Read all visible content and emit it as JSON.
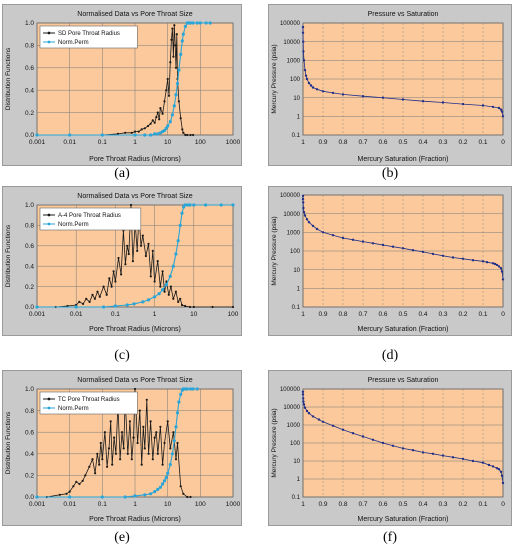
{
  "captions": [
    "(a)",
    "(b)",
    "(c)",
    "(d)",
    "(e)",
    "(f)"
  ],
  "colors": {
    "plot_bg": "#fbc99b",
    "panel_bg": "#c9c9c9",
    "grid": "#7a7a7a",
    "pore_series": "#1a1a1a",
    "perm_series": "#2aa5d8",
    "pressure_series": "#1f2f8a"
  },
  "chart_data": [
    {
      "type": "line",
      "title": "Normalised Data vs Pore Throat Size",
      "xlabel": "Pore Throat Radius (Microns)",
      "ylabel": "Distribution Functions",
      "x_scale": "log",
      "xlim": [
        0.001,
        1000
      ],
      "ylim": [
        0,
        1
      ],
      "xticks": [
        "0.001",
        "0.01",
        "0.1",
        "1",
        "10",
        "100",
        "1000"
      ],
      "yticks": [
        "0.0",
        "0.2",
        "0.4",
        "0.6",
        "0.8",
        "1.0"
      ],
      "grid": true,
      "legend": "top-left",
      "series": [
        {
          "name": "SD Pore Throat Radius",
          "x": [
            0.001,
            0.01,
            0.1,
            0.3,
            0.5,
            0.8,
            1,
            1.3,
            1.6,
            2,
            2.5,
            3,
            3.5,
            4,
            4.5,
            5,
            5.5,
            6,
            7,
            8,
            9,
            10,
            11,
            12,
            13,
            14,
            15,
            16,
            17,
            18,
            19,
            20,
            22,
            25,
            28,
            30,
            35,
            40,
            50,
            60
          ],
          "y": [
            0,
            0,
            0,
            0.01,
            0.02,
            0.02,
            0.03,
            0.03,
            0.05,
            0.06,
            0.08,
            0.1,
            0.13,
            0.11,
            0.16,
            0.2,
            0.14,
            0.24,
            0.19,
            0.3,
            0.4,
            0.5,
            0.35,
            0.65,
            0.85,
            0.95,
            0.7,
            0.98,
            0.8,
            0.6,
            0.9,
            0.5,
            0.3,
            0.15,
            0.05,
            0.02,
            0,
            0,
            0,
            0
          ]
        },
        {
          "name": "Norm.Perm",
          "x": [
            0.001,
            0.01,
            0.1,
            1,
            2,
            3,
            4,
            5,
            6,
            7,
            8,
            9,
            10,
            12,
            14,
            16,
            18,
            20,
            22,
            25,
            28,
            30,
            35,
            40,
            45,
            50,
            60,
            80,
            100,
            150,
            200
          ],
          "y": [
            0,
            0,
            0,
            0,
            0,
            0,
            0.01,
            0.01,
            0.02,
            0.03,
            0.04,
            0.06,
            0.08,
            0.12,
            0.18,
            0.26,
            0.36,
            0.46,
            0.58,
            0.72,
            0.84,
            0.9,
            0.97,
            1,
            1,
            1,
            1,
            1,
            1,
            1,
            1
          ]
        }
      ]
    },
    {
      "type": "line",
      "title": "Pressure vs Saturation",
      "xlabel": "Mercury Saturation (Fraction)",
      "ylabel": "Mercury Pressure (psia)",
      "y_scale": "log",
      "xlim": [
        1,
        0
      ],
      "ylim": [
        0.1,
        100000
      ],
      "xticks": [
        "1",
        "0.9",
        "0.8",
        "0.7",
        "0.6",
        "0.5",
        "0.4",
        "0.3",
        "0.2",
        "0.1",
        "0"
      ],
      "yticks": [
        "0.1",
        "1",
        "10",
        "100",
        "1000",
        "10000",
        "100000"
      ],
      "grid": true,
      "series": [
        {
          "x": [
            1,
            1,
            0.999,
            0.998,
            0.995,
            0.99,
            0.985,
            0.98,
            0.97,
            0.96,
            0.95,
            0.93,
            0.9,
            0.85,
            0.8,
            0.7,
            0.6,
            0.5,
            0.4,
            0.3,
            0.2,
            0.1,
            0.05,
            0.02,
            0.01,
            0.005,
            0
          ],
          "y": [
            60000,
            30000,
            10000,
            3000,
            1000,
            300,
            150,
            100,
            60,
            45,
            35,
            28,
            22,
            18,
            15,
            12,
            10,
            8,
            6.5,
            5.5,
            4.5,
            3.8,
            3.2,
            2.8,
            2.3,
            1.8,
            1
          ]
        }
      ]
    },
    {
      "type": "line",
      "title": "Normalised Data vs Pore Throat Size",
      "xlabel": "Pore Throat Radius (Microns)",
      "ylabel": "Distribution Functions",
      "x_scale": "log",
      "xlim": [
        0.001,
        100
      ],
      "ylim": [
        0,
        1
      ],
      "xticks": [
        "0.001",
        "0.01",
        "0.1",
        "1",
        "10",
        "100"
      ],
      "yticks": [
        "0.0",
        "0.2",
        "0.4",
        "0.6",
        "0.8",
        "1.0"
      ],
      "grid": true,
      "legend": "top-left",
      "series": [
        {
          "name": "A-4 Pore Throat Radius",
          "x": [
            0.001,
            0.003,
            0.006,
            0.01,
            0.012,
            0.015,
            0.018,
            0.022,
            0.026,
            0.03,
            0.035,
            0.04,
            0.05,
            0.06,
            0.07,
            0.08,
            0.09,
            0.1,
            0.12,
            0.14,
            0.16,
            0.18,
            0.2,
            0.22,
            0.25,
            0.28,
            0.32,
            0.36,
            0.4,
            0.45,
            0.5,
            0.6,
            0.7,
            0.8,
            0.9,
            1,
            1.2,
            1.4,
            1.6,
            1.8,
            2,
            2.3,
            2.6,
            3,
            3.5,
            4,
            4.5,
            5,
            6,
            8,
            10,
            30,
            100
          ],
          "y": [
            0,
            0,
            0.01,
            0.02,
            0.05,
            0.03,
            0.08,
            0.05,
            0.12,
            0.08,
            0.15,
            0.1,
            0.2,
            0.12,
            0.28,
            0.2,
            0.35,
            0.25,
            0.48,
            0.32,
            0.75,
            0.42,
            0.6,
            0.52,
            1,
            0.45,
            0.82,
            0.55,
            0.9,
            0.6,
            0.7,
            0.5,
            0.62,
            0.3,
            0.55,
            0.25,
            0.45,
            0.2,
            0.35,
            0.15,
            0.25,
            0.12,
            0.2,
            0.08,
            0.15,
            0.05,
            0.08,
            0.02,
            0.01,
            0,
            0,
            0,
            0
          ]
        },
        {
          "name": "Norm.Perm",
          "x": [
            0.001,
            0.01,
            0.05,
            0.1,
            0.2,
            0.3,
            0.5,
            0.7,
            1,
            1.3,
            1.6,
            2,
            2.5,
            3,
            3.5,
            4,
            4.5,
            5,
            5.5,
            6,
            7,
            8,
            10,
            20,
            50,
            100
          ],
          "y": [
            0,
            0,
            0,
            0.01,
            0.02,
            0.03,
            0.05,
            0.07,
            0.1,
            0.13,
            0.17,
            0.22,
            0.3,
            0.4,
            0.52,
            0.65,
            0.8,
            0.92,
            0.98,
            1,
            1,
            1,
            1,
            1,
            1,
            1
          ]
        }
      ]
    },
    {
      "type": "line",
      "title": "",
      "xlabel": "Mercury Saturation (Fraction)",
      "ylabel": "Mercury Pressure (psia)",
      "y_scale": "log",
      "xlim": [
        1,
        0
      ],
      "ylim": [
        0.1,
        100000
      ],
      "xticks": [
        "1",
        "0.9",
        "0.8",
        "0.7",
        "0.6",
        "0.5",
        "0.4",
        "0.3",
        "0.2",
        "0.1",
        "0"
      ],
      "yticks": [
        "0.1",
        "1",
        "10",
        "100",
        "1000",
        "10000",
        "100000"
      ],
      "grid": true,
      "series": [
        {
          "x": [
            1,
            1,
            0.999,
            0.998,
            0.995,
            0.99,
            0.98,
            0.97,
            0.95,
            0.93,
            0.9,
            0.85,
            0.8,
            0.75,
            0.7,
            0.65,
            0.6,
            0.55,
            0.5,
            0.45,
            0.4,
            0.35,
            0.3,
            0.25,
            0.2,
            0.15,
            0.1,
            0.08,
            0.05,
            0.04,
            0.03,
            0.02,
            0.01,
            0.005,
            0
          ],
          "y": [
            90000,
            60000,
            40000,
            20000,
            12000,
            8000,
            5000,
            3500,
            2200,
            1500,
            1000,
            700,
            500,
            400,
            320,
            260,
            210,
            170,
            140,
            110,
            90,
            70,
            55,
            45,
            38,
            32,
            28,
            25,
            22,
            20,
            18,
            15,
            12,
            8,
            3
          ]
        }
      ]
    },
    {
      "type": "line",
      "title": "Normalised Data vs Pore Throat Size",
      "xlabel": "Pore Throat Radius (Microns)",
      "ylabel": "Distribution Functions",
      "x_scale": "log",
      "xlim": [
        0.001,
        1000
      ],
      "ylim": [
        0,
        1
      ],
      "xticks": [
        "0.001",
        "0.01",
        "0.1",
        "1",
        "10",
        "100",
        "1000"
      ],
      "yticks": [
        "0.0",
        "0.2",
        "0.4",
        "0.6",
        "0.8",
        "1.0"
      ],
      "grid": true,
      "legend": "top-left",
      "series": [
        {
          "name": "TC Pore Throat Radius",
          "x": [
            0.001,
            0.002,
            0.005,
            0.008,
            0.01,
            0.013,
            0.016,
            0.02,
            0.025,
            0.03,
            0.04,
            0.05,
            0.06,
            0.07,
            0.08,
            0.09,
            0.1,
            0.12,
            0.14,
            0.16,
            0.18,
            0.2,
            0.23,
            0.26,
            0.3,
            0.35,
            0.4,
            0.45,
            0.5,
            0.6,
            0.7,
            0.8,
            0.9,
            1,
            1.2,
            1.4,
            1.6,
            1.8,
            2,
            2.3,
            2.6,
            3,
            3.5,
            4,
            4.5,
            5,
            6,
            7,
            8,
            10,
            12,
            15,
            18,
            20,
            25,
            30,
            40,
            50
          ],
          "y": [
            0,
            0,
            0.02,
            0.03,
            0.05,
            0.1,
            0.14,
            0.12,
            0.15,
            0.2,
            0.28,
            0.35,
            0.22,
            0.4,
            0.3,
            0.5,
            0.35,
            0.6,
            0.28,
            0.45,
            0.7,
            0.3,
            0.55,
            0.4,
            0.85,
            0.35,
            0.6,
            0.45,
            0.9,
            0.4,
            0.7,
            0.35,
            0.55,
            1,
            0.5,
            0.8,
            0.3,
            0.65,
            0.45,
            0.9,
            0.4,
            0.7,
            0.35,
            0.55,
            0.6,
            0.4,
            0.65,
            0.3,
            0.5,
            0.7,
            0.45,
            0.6,
            0.35,
            0.5,
            0.1,
            0.03,
            0,
            0
          ]
        },
        {
          "name": "Norm.Perm",
          "x": [
            0.001,
            0.01,
            0.1,
            0.5,
            1,
            2,
            3,
            4,
            5,
            6,
            7,
            8,
            9,
            10,
            12,
            14,
            16,
            18,
            20,
            22,
            25,
            28,
            30,
            35,
            40,
            50,
            60,
            80
          ],
          "y": [
            0,
            0,
            0,
            0,
            0.01,
            0.02,
            0.03,
            0.05,
            0.07,
            0.09,
            0.12,
            0.15,
            0.18,
            0.22,
            0.3,
            0.4,
            0.52,
            0.65,
            0.78,
            0.88,
            0.95,
            0.99,
            1,
            1,
            1,
            1,
            1,
            1
          ]
        }
      ]
    },
    {
      "type": "line",
      "title": "Pressure vs Saturation",
      "xlabel": "Mercury Saturation (Fraction)",
      "ylabel": "Mercury Pressure (psia)",
      "y_scale": "log",
      "xlim": [
        1,
        0
      ],
      "ylim": [
        0.1,
        100000
      ],
      "xticks": [
        "1",
        "0.9",
        "0.8",
        "0.7",
        "0.6",
        "0.5",
        "0.4",
        "0.3",
        "0.2",
        "0.1",
        "0"
      ],
      "yticks": [
        "0.1",
        "1",
        "10",
        "100",
        "1000",
        "10000",
        "100000"
      ],
      "grid": true,
      "series": [
        {
          "x": [
            1,
            1,
            0.999,
            0.998,
            0.995,
            0.99,
            0.98,
            0.97,
            0.95,
            0.92,
            0.9,
            0.85,
            0.8,
            0.75,
            0.7,
            0.65,
            0.6,
            0.55,
            0.5,
            0.45,
            0.4,
            0.35,
            0.3,
            0.25,
            0.2,
            0.15,
            0.1,
            0.07,
            0.05,
            0.03,
            0.02,
            0.01,
            0.005,
            0
          ],
          "y": [
            70000,
            50000,
            30000,
            20000,
            14000,
            9000,
            6000,
            4500,
            3000,
            2000,
            1500,
            900,
            550,
            350,
            230,
            150,
            100,
            70,
            50,
            40,
            30,
            25,
            20,
            16,
            13,
            10,
            8,
            6,
            5,
            4,
            3.5,
            2.5,
            1.5,
            0.6
          ]
        }
      ]
    }
  ]
}
